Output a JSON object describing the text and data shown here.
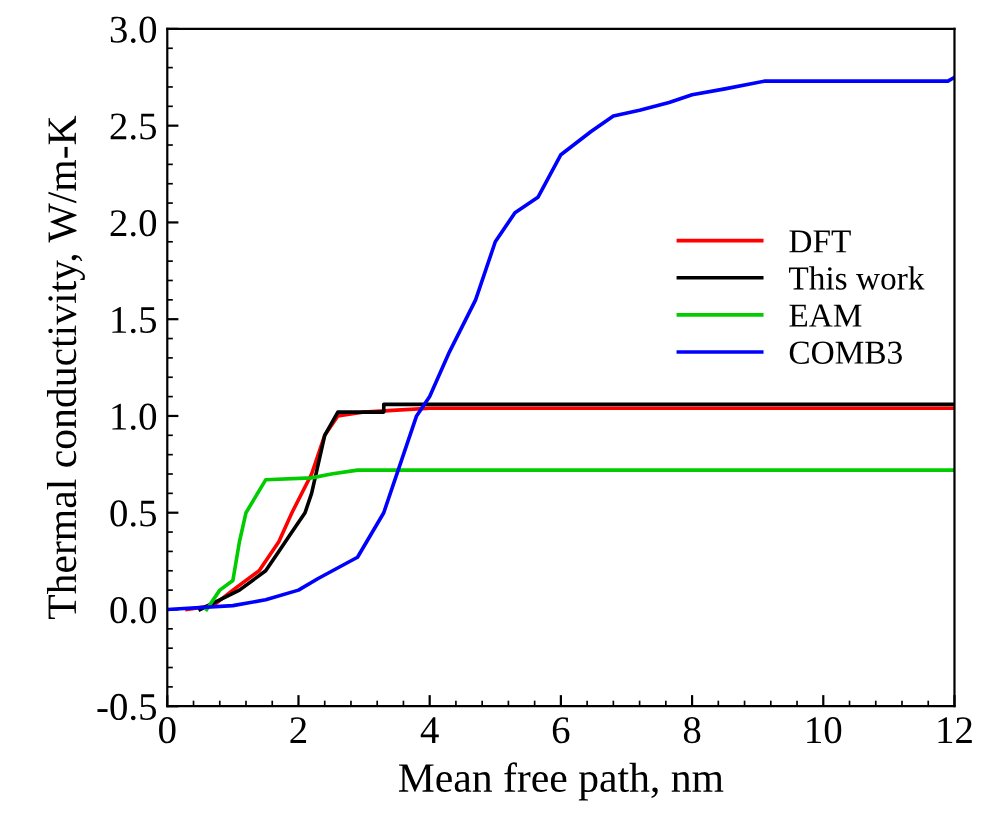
{
  "chart_data": {
    "type": "line",
    "xlabel": "Mean free path, nm",
    "ylabel": "Thermal conductivity, W/m-K",
    "xlim": [
      0,
      12
    ],
    "ylim": [
      -0.5,
      3.0
    ],
    "xticks": [
      0,
      2,
      4,
      6,
      8,
      10,
      12
    ],
    "yticks": [
      {
        "value": -0.5,
        "label": "-0.5"
      },
      {
        "value": 0,
        "label": "0.0"
      },
      {
        "value": 0.5,
        "label": "0.5"
      },
      {
        "value": 1.0,
        "label": "1.0"
      },
      {
        "value": 1.5,
        "label": "1.5"
      },
      {
        "value": 2.0,
        "label": "2.0"
      },
      {
        "value": 2.5,
        "label": "2.5"
      },
      {
        "value": 3.0,
        "label": "3.0"
      }
    ],
    "grid": false,
    "legend": "right",
    "line_style": "solid",
    "marker": "none",
    "series": [
      {
        "name": "DFT",
        "color": "#ff0000",
        "x": [
          0.3,
          0.7,
          1.0,
          1.4,
          1.7,
          1.9,
          2.2,
          2.4,
          2.6,
          3.0,
          3.5,
          4.0,
          12
        ],
        "values": [
          0,
          0.02,
          0.1,
          0.2,
          0.35,
          0.5,
          0.7,
          0.9,
          1.0,
          1.02,
          1.03,
          1.04,
          1.04
        ]
      },
      {
        "name": "This work",
        "color": "#000000",
        "x": [
          0.5,
          0.8,
          1.1,
          1.5,
          1.7,
          1.9,
          2.1,
          2.2,
          2.3,
          2.4,
          2.6,
          3.3,
          3.3,
          12
        ],
        "values": [
          0,
          0.05,
          0.1,
          0.2,
          0.3,
          0.4,
          0.5,
          0.6,
          0.75,
          0.9,
          1.02,
          1.02,
          1.06,
          1.06
        ]
      },
      {
        "name": "EAM",
        "color": "#00cc00",
        "x": [
          0.6,
          0.8,
          1.0,
          1.1,
          1.2,
          1.5,
          2.2,
          2.5,
          2.9,
          12
        ],
        "values": [
          0,
          0.1,
          0.15,
          0.35,
          0.5,
          0.67,
          0.68,
          0.7,
          0.72,
          0.72
        ]
      },
      {
        "name": "COMB3",
        "color": "#0000ff",
        "x": [
          0,
          1.0,
          1.5,
          2.0,
          2.3,
          2.9,
          3.3,
          3.6,
          3.8,
          4.0,
          4.3,
          4.7,
          5.0,
          5.3,
          5.65,
          6.0,
          6.46,
          6.8,
          7.2,
          7.65,
          8.0,
          8.5,
          9.1,
          11.9,
          12
        ],
        "values": [
          0,
          0.02,
          0.05,
          0.1,
          0.16,
          0.27,
          0.5,
          0.8,
          1.0,
          1.1,
          1.33,
          1.6,
          1.9,
          2.05,
          2.13,
          2.35,
          2.47,
          2.55,
          2.58,
          2.62,
          2.66,
          2.69,
          2.73,
          2.73,
          2.75
        ]
      }
    ]
  }
}
